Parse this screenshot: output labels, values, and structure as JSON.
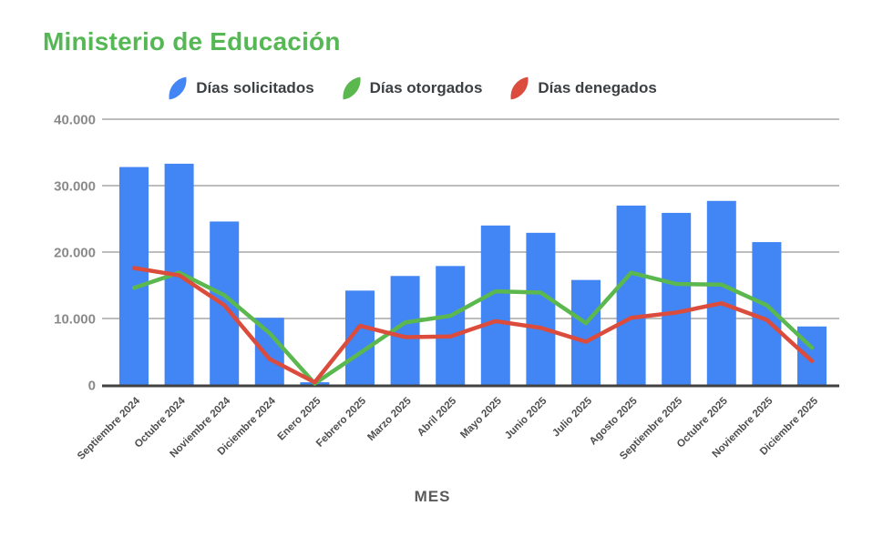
{
  "page": {
    "background": "#FFFFFF"
  },
  "chart_data": {
    "type": "bar",
    "title": "Ministerio de Educación",
    "title_color": "#55B855",
    "xlabel": "MES",
    "ylabel": "",
    "ylim": [
      0,
      40000
    ],
    "grid": true,
    "legend_position": "top",
    "axis_colors": {
      "gridline": "#BDBDBD",
      "baseline": "#414141",
      "ytick_text": "#8A8A8A",
      "xtick_text": "#4E4E4E"
    },
    "yticks": [
      {
        "value": 0,
        "label": "0"
      },
      {
        "value": 10000,
        "label": "10.000"
      },
      {
        "value": 20000,
        "label": "20.000"
      },
      {
        "value": 30000,
        "label": "30.000"
      },
      {
        "value": 40000,
        "label": "40.000"
      }
    ],
    "categories": [
      "Septiembre 2024",
      "Octubre 2024",
      "Noviembre 2024",
      "Diciembre 2024",
      "Enero 2025",
      "Febrero 2025",
      "Marzo 2025",
      "Abril 2025",
      "Mayo 2025",
      "Junio 2025",
      "Julio 2025",
      "Agosto 2025",
      "Septiembre 2025",
      "Octubre 2025",
      "Noviembre 2025",
      "Diciembre 2025"
    ],
    "series": [
      {
        "name": "Días solicitados",
        "type": "bar",
        "color": "#4285F4",
        "values": [
          32800,
          33300,
          24600,
          10100,
          400,
          14200,
          16400,
          17900,
          24000,
          22900,
          15800,
          27000,
          25900,
          27700,
          21500,
          8800
        ]
      },
      {
        "name": "Días otorgados",
        "type": "line",
        "color": "#5BB84F",
        "values": [
          14600,
          16900,
          13500,
          7800,
          200,
          4800,
          9400,
          10400,
          14100,
          13900,
          9300,
          16900,
          15200,
          15100,
          12000,
          5600
        ]
      },
      {
        "name": "Días denegados",
        "type": "line",
        "color": "#DB4C3C",
        "values": [
          17600,
          16500,
          12000,
          3900,
          400,
          8900,
          7200,
          7300,
          9600,
          8600,
          6500,
          10100,
          10900,
          12300,
          9800,
          3600
        ]
      }
    ]
  }
}
